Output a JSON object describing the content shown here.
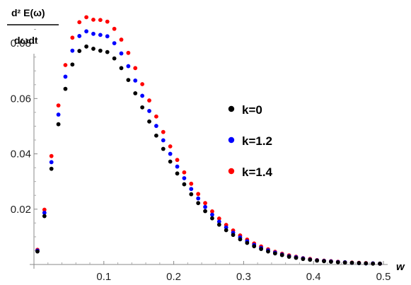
{
  "chart_data": {
    "type": "scatter",
    "ylabel_numerator": "d² E(ω)",
    "ylabel_denominator": "dωdt",
    "xlabel": "w",
    "xlim": [
      0,
      0.5
    ],
    "ylim": [
      0,
      0.09
    ],
    "x_ticks": [
      0.1,
      0.2,
      0.3,
      0.4,
      0.5
    ],
    "x_tick_labels": [
      "0.1",
      "0.2",
      "0.3",
      "0.4",
      "0.5"
    ],
    "y_ticks": [
      0.02,
      0.04,
      0.06,
      0.08
    ],
    "y_tick_labels": [
      "0.02",
      "0.04",
      "0.06",
      "0.08"
    ],
    "legend_placement": "right",
    "series": [
      {
        "name": "k=0",
        "color": "#000000",
        "x": [
          0.005,
          0.015,
          0.025,
          0.035,
          0.045,
          0.055,
          0.065,
          0.075,
          0.085,
          0.095,
          0.105,
          0.115,
          0.125,
          0.135,
          0.145,
          0.155,
          0.165,
          0.175,
          0.185,
          0.195,
          0.205,
          0.215,
          0.225,
          0.235,
          0.245,
          0.255,
          0.265,
          0.275,
          0.285,
          0.295,
          0.305,
          0.315,
          0.325,
          0.335,
          0.345,
          0.355,
          0.365,
          0.375,
          0.385,
          0.395,
          0.405,
          0.415,
          0.425,
          0.435,
          0.445,
          0.455,
          0.465,
          0.475,
          0.485,
          0.495
        ],
        "y": [
          0.0047,
          0.0175,
          0.0346,
          0.0507,
          0.0635,
          0.0723,
          0.0772,
          0.0788,
          0.078,
          0.0773,
          0.0768,
          0.0745,
          0.071,
          0.0667,
          0.0619,
          0.0568,
          0.0517,
          0.0466,
          0.0418,
          0.0372,
          0.0329,
          0.029,
          0.0254,
          0.0222,
          0.0193,
          0.0167,
          0.0144,
          0.0124,
          0.0107,
          0.0091,
          0.0078,
          0.0066,
          0.0056,
          0.0047,
          0.004,
          0.0034,
          0.0028,
          0.0024,
          0.002,
          0.0017,
          0.0014,
          0.0012,
          0.001,
          0.0008,
          0.0007,
          0.0006,
          0.0005,
          0.0004,
          0.0003,
          0.0003
        ]
      },
      {
        "name": "k=1.2",
        "color": "#0000ff",
        "x": [
          0.005,
          0.015,
          0.025,
          0.035,
          0.045,
          0.055,
          0.065,
          0.075,
          0.085,
          0.095,
          0.105,
          0.115,
          0.125,
          0.135,
          0.145,
          0.155,
          0.165,
          0.175,
          0.185,
          0.195,
          0.205,
          0.215,
          0.225,
          0.235,
          0.245,
          0.255,
          0.265,
          0.275,
          0.285,
          0.295,
          0.305,
          0.315,
          0.325,
          0.335,
          0.345,
          0.355,
          0.365,
          0.375,
          0.385,
          0.395,
          0.405,
          0.415,
          0.425,
          0.435,
          0.445,
          0.455,
          0.465,
          0.475,
          0.485,
          0.495
        ],
        "y": [
          0.005,
          0.0187,
          0.037,
          0.0542,
          0.0679,
          0.0773,
          0.0826,
          0.0843,
          0.0834,
          0.083,
          0.0825,
          0.08,
          0.0763,
          0.0717,
          0.0665,
          0.061,
          0.0555,
          0.0501,
          0.0449,
          0.04,
          0.0354,
          0.0312,
          0.0273,
          0.0239,
          0.0208,
          0.018,
          0.0155,
          0.0134,
          0.0115,
          0.0098,
          0.0084,
          0.0071,
          0.006,
          0.0051,
          0.0043,
          0.0036,
          0.003,
          0.0026,
          0.0022,
          0.0018,
          0.0015,
          0.0013,
          0.0011,
          0.0009,
          0.0008,
          0.0006,
          0.0005,
          0.0004,
          0.0004,
          0.0003
        ]
      },
      {
        "name": "k=1.4",
        "color": "#ff0000",
        "x": [
          0.005,
          0.015,
          0.025,
          0.035,
          0.045,
          0.055,
          0.065,
          0.075,
          0.085,
          0.095,
          0.105,
          0.115,
          0.125,
          0.135,
          0.145,
          0.155,
          0.165,
          0.175,
          0.185,
          0.195,
          0.205,
          0.215,
          0.225,
          0.235,
          0.245,
          0.255,
          0.265,
          0.275,
          0.285,
          0.295,
          0.305,
          0.315,
          0.325,
          0.335,
          0.345,
          0.355,
          0.365,
          0.375,
          0.385,
          0.395,
          0.405,
          0.415,
          0.425,
          0.435,
          0.445,
          0.455,
          0.465,
          0.475,
          0.485,
          0.495
        ],
        "y": [
          0.0053,
          0.0198,
          0.0392,
          0.0575,
          0.0721,
          0.082,
          0.0876,
          0.0894,
          0.0885,
          0.0884,
          0.0878,
          0.0852,
          0.0813,
          0.0765,
          0.071,
          0.0652,
          0.0593,
          0.0535,
          0.0479,
          0.0427,
          0.0378,
          0.0333,
          0.0292,
          0.0255,
          0.0222,
          0.0192,
          0.0166,
          0.0143,
          0.0123,
          0.0105,
          0.009,
          0.0076,
          0.0065,
          0.0055,
          0.0046,
          0.0039,
          0.0033,
          0.0028,
          0.0023,
          0.002,
          0.0016,
          0.0014,
          0.0012,
          0.001,
          0.0008,
          0.0007,
          0.0006,
          0.0005,
          0.0004,
          0.0003
        ]
      }
    ]
  }
}
